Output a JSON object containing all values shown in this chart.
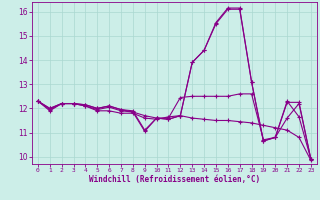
{
  "xlabel": "Windchill (Refroidissement éolien,°C)",
  "background_color": "#cceee8",
  "line_color": "#880088",
  "grid_color": "#aad8d0",
  "xlim": [
    -0.5,
    23.5
  ],
  "ylim": [
    9.7,
    16.4
  ],
  "yticks": [
    10,
    11,
    12,
    13,
    14,
    15,
    16
  ],
  "xticks": [
    0,
    1,
    2,
    3,
    4,
    5,
    6,
    7,
    8,
    9,
    10,
    11,
    12,
    13,
    14,
    15,
    16,
    17,
    18,
    19,
    20,
    21,
    22,
    23
  ],
  "curves": [
    [
      12.3,
      11.9,
      12.2,
      12.2,
      12.1,
      11.9,
      11.9,
      11.8,
      11.8,
      11.6,
      11.55,
      11.65,
      11.7,
      11.6,
      11.55,
      11.5,
      11.5,
      11.45,
      11.4,
      11.3,
      11.2,
      11.1,
      10.8,
      9.85
    ],
    [
      12.3,
      11.95,
      12.2,
      12.2,
      12.1,
      11.95,
      12.05,
      11.9,
      11.85,
      11.7,
      11.6,
      11.6,
      12.45,
      12.5,
      12.5,
      12.5,
      12.5,
      12.6,
      12.6,
      10.7,
      10.8,
      12.25,
      12.25,
      9.9
    ],
    [
      12.3,
      12.0,
      12.2,
      12.2,
      12.15,
      12.0,
      12.1,
      11.95,
      11.85,
      11.05,
      11.6,
      11.55,
      11.7,
      13.9,
      14.4,
      15.5,
      16.1,
      16.1,
      13.1,
      10.65,
      10.8,
      12.3,
      11.65,
      9.9
    ],
    [
      12.3,
      12.0,
      12.2,
      12.2,
      12.15,
      12.0,
      12.1,
      11.95,
      11.9,
      11.1,
      11.6,
      11.55,
      11.7,
      13.9,
      14.4,
      15.55,
      16.15,
      16.15,
      13.1,
      10.65,
      10.8,
      11.6,
      12.2,
      9.9
    ]
  ]
}
